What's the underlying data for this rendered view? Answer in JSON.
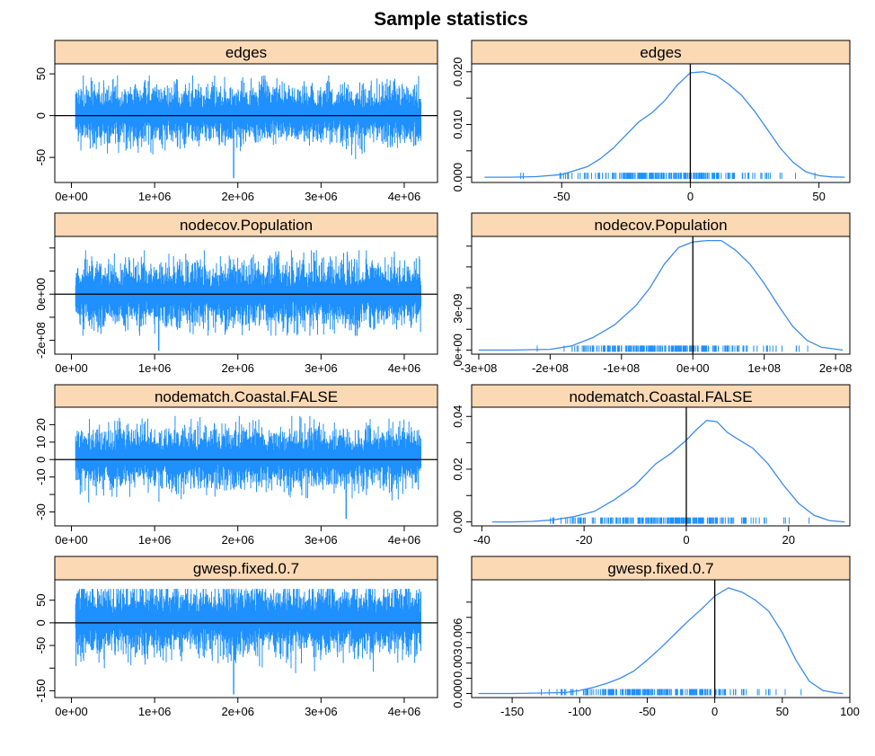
{
  "title": "Sample statistics",
  "colors": {
    "trace": "#1E90FF",
    "density": "#3B8BEA",
    "rug": "#1E90FF",
    "strip": "#FBD9B5",
    "axis": "#000000"
  },
  "chart_data": [
    {
      "type": "line",
      "panel": "trace",
      "strip": "edges",
      "xlim": [
        -200000,
        4400000
      ],
      "ylim": [
        -80,
        62
      ],
      "xticks": [
        0,
        1000000,
        2000000,
        3000000,
        4000000
      ],
      "xtick_labels": [
        "0e+00",
        "1e+06",
        "2e+06",
        "3e+06",
        "4e+06"
      ],
      "yticks": [
        -50,
        0,
        50
      ],
      "ytick_labels": [
        "-50",
        "0",
        "50"
      ],
      "x_range": [
        50000,
        4200000
      ],
      "hline": 0,
      "band": {
        "center": 2,
        "spread": 18,
        "upper_max": 48,
        "lower_min": -55,
        "lower_extreme": -75,
        "extreme_at": 1950000
      }
    },
    {
      "type": "line",
      "panel": "density",
      "strip": "edges",
      "xlim": [
        -85,
        62
      ],
      "ylim": [
        -0.001,
        0.0215
      ],
      "xticks": [
        -50,
        0,
        50
      ],
      "xtick_labels": [
        "-50",
        "0",
        "50"
      ],
      "yticks": [
        0.0,
        0.01,
        0.02
      ],
      "ytick_labels": [
        "0.000",
        "0.010",
        "0.020"
      ],
      "minor_yticks": [
        0.005,
        0.015
      ],
      "vline": 0,
      "x": [
        -80,
        -70,
        -60,
        -50,
        -40,
        -35,
        -30,
        -25,
        -20,
        -15,
        -10,
        -5,
        0,
        5,
        10,
        15,
        20,
        25,
        30,
        35,
        40,
        45,
        50,
        55,
        60
      ],
      "y": [
        0.0,
        0.0,
        0.0001,
        0.0005,
        0.002,
        0.0035,
        0.0055,
        0.008,
        0.0105,
        0.0122,
        0.0145,
        0.0175,
        0.0198,
        0.02,
        0.0193,
        0.0176,
        0.0155,
        0.0125,
        0.009,
        0.0055,
        0.0028,
        0.001,
        0.0003,
        5e-05,
        0.0
      ],
      "rug_range": [
        -76,
        52
      ]
    },
    {
      "type": "line",
      "panel": "trace",
      "strip": "nodecov.Population",
      "xlim": [
        -200000,
        4400000
      ],
      "ylim": [
        -260000000,
        250000000
      ],
      "xticks": [
        0,
        1000000,
        2000000,
        3000000,
        4000000
      ],
      "xtick_labels": [
        "0e+00",
        "1e+06",
        "2e+06",
        "3e+06",
        "4e+06"
      ],
      "yticks": [
        -200000000,
        0
      ],
      "ytick_labels": [
        "-2e+08",
        "0e+00"
      ],
      "minor_yticks": [
        -100000000,
        100000000,
        200000000
      ],
      "x_range": [
        50000,
        4200000
      ],
      "hline": 0,
      "band": {
        "center": 0,
        "spread": 75000000,
        "upper_max": 190000000,
        "lower_min": -180000000,
        "lower_extreme": -245000000,
        "extreme_at": 1050000
      }
    },
    {
      "type": "line",
      "panel": "density",
      "strip": "nodecov.Population",
      "xlim": [
        -310000000,
        220000000
      ],
      "ylim": [
        -3e-10,
        8.2e-09
      ],
      "xticks": [
        -300000000,
        -200000000,
        -100000000,
        0,
        100000000,
        200000000
      ],
      "xtick_labels": [
        "-3e+08",
        "-2e+08",
        "-1e+08",
        "0e+00",
        "1e+08",
        "2e+08"
      ],
      "yticks": [
        0.0,
        3e-09
      ],
      "ytick_labels": [
        "0e+00",
        "3e-09"
      ],
      "minor_yticks": [
        1.5e-09,
        4.5e-09,
        6e-09,
        7.5e-09
      ],
      "vline": 0,
      "x": [
        -300000000,
        -250000000,
        -200000000,
        -170000000,
        -140000000,
        -110000000,
        -80000000,
        -60000000,
        -40000000,
        -20000000,
        0,
        20000000,
        40000000,
        60000000,
        80000000,
        100000000,
        120000000,
        140000000,
        160000000,
        180000000,
        210000000
      ],
      "y": [
        0.0,
        0.0,
        5e-11,
        3e-10,
        9e-10,
        1.8e-09,
        3.2e-09,
        4.5e-09,
        6.2e-09,
        7.4e-09,
        7.8e-09,
        7.9e-09,
        7.9e-09,
        7.2e-09,
        6.2e-09,
        4.8e-09,
        3.2e-09,
        1.7e-09,
        7e-10,
        2e-10,
        0.0
      ],
      "rug_range": [
        -250000000,
        200000000
      ]
    },
    {
      "type": "line",
      "panel": "trace",
      "strip": "nodematch.Coastal.FALSE",
      "xlim": [
        -200000,
        4400000
      ],
      "ylim": [
        -38,
        30
      ],
      "xticks": [
        0,
        1000000,
        2000000,
        3000000,
        4000000
      ],
      "xtick_labels": [
        "0e+00",
        "1e+06",
        "2e+06",
        "3e+06",
        "4e+06"
      ],
      "yticks": [
        -30,
        -10,
        0,
        10,
        20
      ],
      "ytick_labels": [
        "-30",
        "-10",
        "0",
        "10",
        "20"
      ],
      "minor_yticks": [
        -20
      ],
      "x_range": [
        50000,
        4200000
      ],
      "hline": 0,
      "band": {
        "center": 1,
        "spread": 9,
        "upper_max": 25,
        "lower_min": -28,
        "lower_extreme": -34,
        "extreme_at": 3300000
      }
    },
    {
      "type": "line",
      "panel": "density",
      "strip": "nodematch.Coastal.FALSE",
      "xlim": [
        -42,
        32
      ],
      "ylim": [
        -0.0015,
        0.0435
      ],
      "xticks": [
        -40,
        -20,
        0,
        20
      ],
      "xtick_labels": [
        "-40",
        "-20",
        "0",
        "20"
      ],
      "yticks": [
        0.0,
        0.02,
        0.04
      ],
      "ytick_labels": [
        "0.00",
        "0.02",
        "0.04"
      ],
      "minor_yticks": [
        0.01,
        0.03
      ],
      "vline": 0,
      "x": [
        -38,
        -34,
        -30,
        -26,
        -22,
        -18,
        -14,
        -10,
        -6,
        -3,
        0,
        2,
        4,
        6,
        8,
        10,
        13,
        16,
        19,
        22,
        25,
        28,
        31
      ],
      "y": [
        0.0,
        0.0,
        0.0002,
        0.0008,
        0.002,
        0.004,
        0.0085,
        0.014,
        0.022,
        0.026,
        0.031,
        0.035,
        0.0385,
        0.038,
        0.034,
        0.0315,
        0.028,
        0.022,
        0.014,
        0.007,
        0.0025,
        0.0005,
        0.0
      ],
      "rug_range": [
        -34,
        27
      ]
    },
    {
      "type": "line",
      "panel": "trace",
      "strip": "gwesp.fixed.0.7",
      "xlim": [
        -200000,
        4400000
      ],
      "ylim": [
        -165,
        95
      ],
      "xticks": [
        0,
        1000000,
        2000000,
        3000000,
        4000000
      ],
      "xtick_labels": [
        "0e+00",
        "1e+06",
        "2e+06",
        "3e+06",
        "4e+06"
      ],
      "yticks": [
        -150,
        -50,
        0,
        50
      ],
      "ytick_labels": [
        "-150",
        "-50",
        "0",
        "50"
      ],
      "minor_yticks": [
        -100
      ],
      "x_range": [
        50000,
        4200000
      ],
      "hline": 0,
      "band": {
        "center": 5,
        "spread": 40,
        "upper_max": 75,
        "lower_min": -115,
        "lower_extreme": -158,
        "extreme_at": 1950000
      }
    },
    {
      "type": "line",
      "panel": "density",
      "strip": "gwesp.fixed.0.7",
      "xlim": [
        -180,
        100
      ],
      "ylim": [
        -0.0004,
        0.0112
      ],
      "xticks": [
        -150,
        -100,
        -50,
        0,
        50,
        100
      ],
      "xtick_labels": [
        "-150",
        "-100",
        "-50",
        "0",
        "50",
        "100"
      ],
      "yticks": [
        0.0,
        0.003,
        0.006
      ],
      "ytick_labels": [
        "0.000",
        "0.003",
        "0.006"
      ],
      "minor_yticks": [
        0.0015,
        0.0045,
        0.0075,
        0.009
      ],
      "vline": 0,
      "x": [
        -175,
        -150,
        -125,
        -110,
        -100,
        -90,
        -80,
        -70,
        -60,
        -50,
        -40,
        -30,
        -20,
        -10,
        0,
        10,
        20,
        30,
        40,
        50,
        60,
        70,
        80,
        90,
        95
      ],
      "y": [
        0.0,
        0.0,
        5e-05,
        0.0001,
        0.0003,
        0.0006,
        0.001,
        0.0015,
        0.0022,
        0.0033,
        0.0045,
        0.0058,
        0.0071,
        0.0083,
        0.0096,
        0.0104,
        0.01,
        0.0092,
        0.0081,
        0.006,
        0.0033,
        0.0012,
        0.0003,
        5e-05,
        0.0
      ],
      "rug_range": [
        -160,
        78
      ]
    }
  ]
}
